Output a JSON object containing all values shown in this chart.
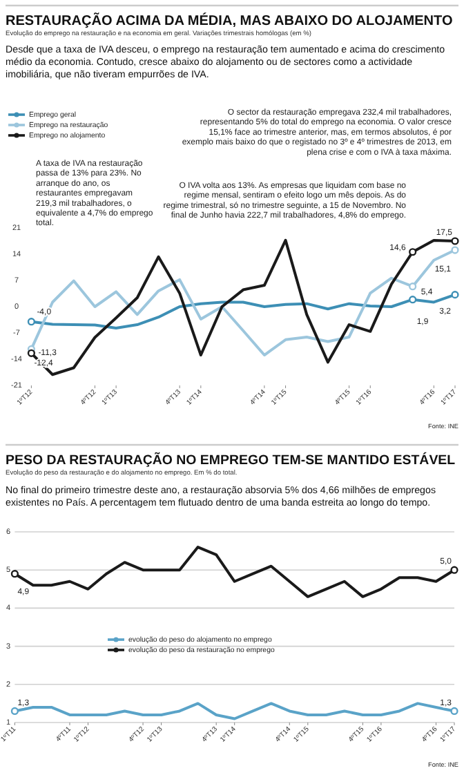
{
  "chart_data": [
    {
      "type": "line",
      "title": "RESTAURAÇÃO ACIMA DA MÉDIA, MAS ABAIXO DO ALOJAMENTO",
      "subtitle": "Evolução do emprego na restauração e na economia em geral. Variações trimestrais homólogas (em %)",
      "annotations": [
        "Desde que a taxa de IVA desceu, o emprego na restauração tem aumentado e acima do crescimento médio da economia. Contudo, cresce abaixo do alojamento ou de sectores como a actividade imobiliária, que não tiveram empurrões de IVA.",
        "O sector da restauração empregava 232,4 mil trabalhadores, representando 5% do total do emprego na economia. O valor cresce 15,1% face ao trimestre anterior, mas, em termos absolutos, é por exemplo mais baixo do que o registado no 3º e 4º trimestres de 2013, em plena crise e com o IVA à taxa máxima.",
        "A taxa de IVA na restauração passa de 13% para 23%. No arranque do ano, os restaurantes empregavam 219,3 mil trabalhadores, o equivalente a 4,7% do emprego total.",
        "O IVA volta aos 13%. As empresas que liquidam com base no regime mensal, sentiram o efeito logo um mês depois. As do regime trimestral, só no trimestre seguinte, a 15 de Novembro. No final de Junho havia 222,7 mil trabalhadores, 4,8% do emprego.",
        "Fonte: INE"
      ],
      "categories": [
        "1ºT12",
        null,
        null,
        "4ºT12",
        "1ºT13",
        null,
        null,
        "4ºT13",
        "1ºT14",
        null,
        null,
        "4ºT14",
        "1ºT15",
        null,
        null,
        "4ºT15",
        "1ºT16",
        null,
        null,
        "4ºT16",
        "1ºT17"
      ],
      "series": [
        {
          "name": "Emprego geral",
          "color": "#3d8fb5",
          "values": [
            -4.0,
            -4.7,
            -4.8,
            -4.9,
            -5.7,
            -4.8,
            -2.8,
            0,
            0.8,
            1.2,
            1.2,
            0,
            0.6,
            0.8,
            -0.6,
            0.8,
            0.2,
            0,
            1.9,
            1.2,
            3.2
          ],
          "value_labels": [
            "-4,0",
            null,
            null,
            null,
            null,
            null,
            null,
            null,
            null,
            null,
            null,
            null,
            null,
            null,
            null,
            null,
            null,
            null,
            "1,9",
            null,
            "3,2"
          ]
        },
        {
          "name": "Emprego na restauração",
          "color": "#9cc6dd",
          "values": [
            -11.3,
            1.2,
            6.9,
            0,
            4.0,
            -2.1,
            4.2,
            7.2,
            -3.3,
            0,
            -6.4,
            -12.9,
            -8.8,
            -8.1,
            -9.3,
            -8.1,
            3.6,
            7.6,
            5.4,
            12.4,
            15.1
          ],
          "value_labels": [
            "-11,3",
            null,
            null,
            null,
            null,
            null,
            null,
            null,
            null,
            null,
            null,
            null,
            null,
            null,
            null,
            null,
            null,
            null,
            "5,4",
            null,
            "15,1"
          ]
        },
        {
          "name": "Emprego no alojamento",
          "color": "#1a1a1a",
          "values": [
            -12.4,
            -18.1,
            -16.3,
            -8.2,
            -3.0,
            2.4,
            13.3,
            3.6,
            -12.9,
            0,
            4.5,
            5.7,
            17.7,
            -2.1,
            -14.8,
            -4.8,
            -6.6,
            6.0,
            14.6,
            17.7,
            17.5
          ],
          "value_labels": [
            "-12,4",
            null,
            null,
            null,
            null,
            null,
            null,
            null,
            null,
            null,
            null,
            null,
            null,
            null,
            null,
            null,
            null,
            null,
            "14,6",
            null,
            "17,5"
          ]
        }
      ],
      "ylim": [
        -21,
        21
      ],
      "yticks": [
        -21,
        -14,
        -7,
        0,
        7,
        14,
        21
      ],
      "grid": false,
      "legend": "top left"
    },
    {
      "type": "line",
      "title": "PESO DA RESTAURAÇÃO NO EMPREGO TEM-SE MANTIDO ESTÁVEL",
      "subtitle": "Evolução do peso da restauração e do alojamento no emprego. Em % do total.",
      "annotations": [
        "No final do primeiro trimestre deste ano, a restauração absorvia 5% dos 4,66 milhões de empregos existentes no País. A percentagem tem flutuado dentro de uma banda estreita ao longo do tempo.",
        "Fonte: INE"
      ],
      "categories": [
        "1ºT11",
        null,
        null,
        "4ºT11",
        "1ºT12",
        null,
        null,
        "4ºT12",
        "1ºT13",
        null,
        null,
        "4ºT13",
        "1ºT14",
        null,
        null,
        "4ºT14",
        "1ºT15",
        null,
        null,
        "4ºT15",
        "1ºT16",
        null,
        null,
        "4ºT16",
        "1ºT17"
      ],
      "series": [
        {
          "name": "evolução do peso do alojamento no emprego",
          "color": "#5aa3c8",
          "values": [
            1.3,
            1.4,
            1.4,
            1.2,
            1.2,
            1.2,
            1.3,
            1.2,
            1.2,
            1.3,
            1.5,
            1.2,
            1.1,
            1.3,
            1.5,
            1.3,
            1.2,
            1.2,
            1.3,
            1.2,
            1.2,
            1.3,
            1.5,
            1.4,
            1.3
          ],
          "value_labels": [
            "1,3",
            null,
            null,
            null,
            null,
            null,
            null,
            null,
            null,
            null,
            null,
            null,
            null,
            null,
            null,
            null,
            null,
            null,
            null,
            null,
            null,
            null,
            null,
            null,
            "1,3"
          ]
        },
        {
          "name": "evolução do peso da restauração no emprego",
          "color": "#1a1a1a",
          "values": [
            4.9,
            4.6,
            4.6,
            4.7,
            4.5,
            4.9,
            5.2,
            5.0,
            5.0,
            5.0,
            5.6,
            5.4,
            4.7,
            4.9,
            5.1,
            4.7,
            4.3,
            4.5,
            4.7,
            4.3,
            4.5,
            4.8,
            4.8,
            4.7,
            5.0
          ],
          "value_labels": [
            "4,9",
            null,
            null,
            null,
            null,
            null,
            null,
            null,
            null,
            null,
            null,
            null,
            null,
            null,
            null,
            null,
            null,
            null,
            null,
            null,
            null,
            null,
            null,
            null,
            "5,0"
          ]
        }
      ],
      "ylim": [
        1,
        6
      ],
      "yticks": [
        1,
        2,
        3,
        4,
        5,
        6
      ],
      "grid": "y",
      "legend": "center"
    }
  ]
}
